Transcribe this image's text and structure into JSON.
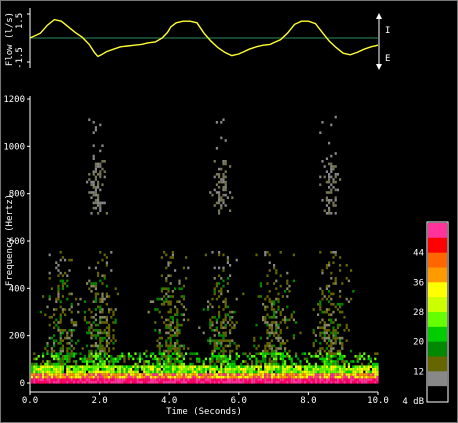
{
  "chart_data": [
    {
      "type": "line",
      "ylabel": "Flow (l/s)",
      "yticks": [
        "1.5",
        "-1.5"
      ],
      "ylim": [
        -1.5,
        1.5
      ],
      "direction_labels": {
        "up": "I",
        "down": "E"
      },
      "series": [
        {
          "x": [
            0.0,
            0.3,
            0.5,
            0.7,
            0.9,
            1.1,
            1.3,
            1.5,
            1.7,
            1.85,
            1.95,
            2.05,
            2.2,
            2.4,
            2.6,
            2.8,
            3.0,
            3.2,
            3.4,
            3.6,
            3.8,
            3.95,
            4.05,
            4.2,
            4.4,
            4.6,
            4.8,
            5.0,
            5.2,
            5.4,
            5.6,
            5.8,
            6.0,
            6.15,
            6.3,
            6.5,
            6.7,
            6.9,
            7.0,
            7.2,
            7.4,
            7.6,
            7.8,
            8.0,
            8.2,
            8.4,
            8.6,
            8.8,
            9.0,
            9.2,
            9.4,
            9.6,
            9.8,
            10.0
          ],
          "y": [
            0.0,
            0.3,
            0.8,
            1.15,
            1.05,
            0.7,
            0.35,
            0.05,
            -0.4,
            -0.9,
            -1.15,
            -1.05,
            -0.85,
            -0.7,
            -0.55,
            -0.5,
            -0.45,
            -0.4,
            -0.3,
            -0.25,
            0.0,
            0.35,
            0.7,
            0.95,
            1.05,
            1.05,
            0.95,
            0.3,
            -0.2,
            -0.6,
            -0.9,
            -1.1,
            -1.0,
            -0.85,
            -0.7,
            -0.55,
            -0.45,
            -0.4,
            -0.3,
            -0.1,
            0.3,
            0.85,
            1.05,
            1.05,
            0.9,
            0.35,
            -0.2,
            -0.6,
            -0.95,
            -1.05,
            -0.9,
            -0.7,
            -0.55,
            -0.45
          ]
        }
      ],
      "line_color": "#ffff33",
      "zero_line_color": "#2e8b57"
    },
    {
      "type": "heatmap",
      "xlabel": "Time (Seconds)",
      "ylabel": "Frequency (Hertz)",
      "xticks": [
        "0.0",
        "2.0",
        "4.0",
        "6.0",
        "8.0",
        "10.0"
      ],
      "yticks": [
        "0",
        "200",
        "400",
        "600",
        "800",
        "1000",
        "1200"
      ],
      "xlim": [
        0,
        10
      ],
      "ylim": [
        0,
        1200
      ],
      "colorbar": {
        "labels": [
          "44",
          "36",
          "28",
          "20",
          "12",
          "4 dB"
        ],
        "colors": [
          "#ff3399",
          "#ff0000",
          "#ff6600",
          "#ff9900",
          "#ffff00",
          "#ccff00",
          "#66ff00",
          "#00cc00",
          "#008800",
          "#666600",
          "#888888",
          "#000000"
        ]
      },
      "bursts_seconds": [
        0.9,
        2.0,
        4.0,
        5.5,
        7.0,
        8.6
      ],
      "high_freq_bursts_seconds": [
        1.9,
        5.5,
        8.6
      ]
    }
  ]
}
